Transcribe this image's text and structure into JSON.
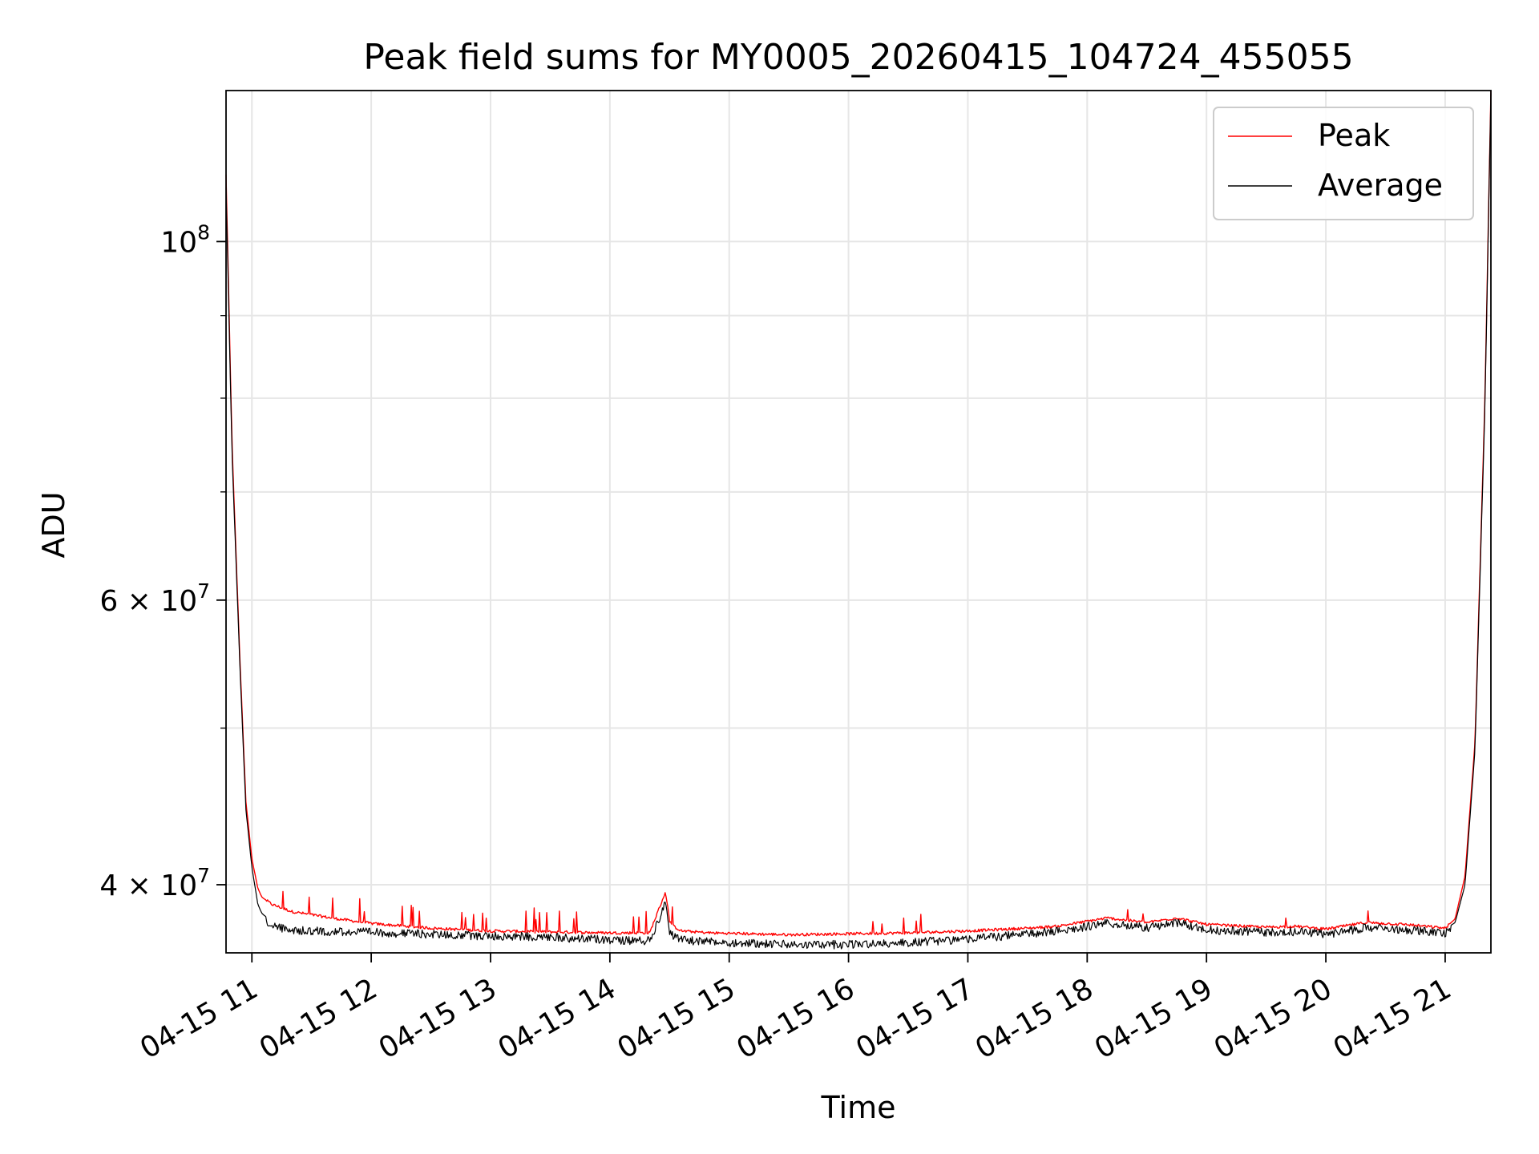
{
  "chart_data": {
    "type": "line",
    "title": "Peak field sums for MY0005_20260415_104724_455055",
    "xlabel": "Time",
    "ylabel": "ADU",
    "y_scale": "log",
    "xlim": [
      "04-15 10:47",
      "04-15 21:23"
    ],
    "ylim": [
      36300000,
      124000000
    ],
    "x_ticks": [
      "04-15 11",
      "04-15 12",
      "04-15 13",
      "04-15 14",
      "04-15 15",
      "04-15 16",
      "04-15 17",
      "04-15 18",
      "04-15 19",
      "04-15 20",
      "04-15 21"
    ],
    "y_major_ticks": [
      {
        "value": 100000000,
        "base": "10",
        "exp": "8"
      },
      {
        "value": 60000000,
        "base": "6 × 10",
        "exp": "7"
      },
      {
        "value": 40000000,
        "base": "4 × 10",
        "exp": "7"
      }
    ],
    "y_minor_ticks": [
      90000000,
      80000000,
      70000000,
      50000000
    ],
    "grid": true,
    "legend": "top-right",
    "series": [
      {
        "name": "Peak",
        "color": "#ff0000",
        "x": [
          "04-15 10:47",
          "04-15 10:50",
          "04-15 10:54",
          "04-15 10:57",
          "04-15 11:00",
          "04-15 11:03",
          "04-15 11:05",
          "04-15 11:10",
          "04-15 11:20",
          "04-15 11:40",
          "04-15 12:00",
          "04-15 12:30",
          "04-15 13:00",
          "04-15 13:30",
          "04-15 14:00",
          "04-15 14:20",
          "04-15 14:28",
          "04-15 14:30",
          "04-15 14:32",
          "04-15 14:36",
          "04-15 14:50",
          "04-15 15:30",
          "04-15 16:00",
          "04-15 16:30",
          "04-15 17:00",
          "04-15 17:30",
          "04-15 17:45",
          "04-15 18:10",
          "04-15 18:30",
          "04-15 18:45",
          "04-15 19:00",
          "04-15 19:30",
          "04-15 19:45",
          "04-15 20:00",
          "04-15 20:20",
          "04-15 20:40",
          "04-15 21:00",
          "04-15 21:05",
          "04-15 21:10",
          "04-15 21:15",
          "04-15 21:20",
          "04-15 21:23"
        ],
        "y": [
          110000000,
          75000000,
          55000000,
          45000000,
          41500000,
          39800000,
          39300000,
          38900000,
          38500000,
          38150000,
          37850000,
          37600000,
          37450000,
          37400000,
          37350000,
          37350000,
          39600000,
          38000000,
          37700000,
          37450000,
          37350000,
          37250000,
          37300000,
          37350000,
          37450000,
          37600000,
          37700000,
          38150000,
          37900000,
          38150000,
          37800000,
          37650000,
          37700000,
          37550000,
          37900000,
          37800000,
          37600000,
          38100000,
          40500000,
          49000000,
          80000000,
          124000000
        ]
      },
      {
        "name": "Average",
        "color": "#000000",
        "x": [
          "04-15 10:47",
          "04-15 10:50",
          "04-15 10:54",
          "04-15 10:57",
          "04-15 11:00",
          "04-15 11:03",
          "04-15 11:05",
          "04-15 11:10",
          "04-15 11:20",
          "04-15 11:40",
          "04-15 12:00",
          "04-15 12:30",
          "04-15 13:00",
          "04-15 13:30",
          "04-15 14:00",
          "04-15 14:20",
          "04-15 14:28",
          "04-15 14:30",
          "04-15 14:32",
          "04-15 14:36",
          "04-15 14:50",
          "04-15 15:30",
          "04-15 16:00",
          "04-15 16:30",
          "04-15 17:00",
          "04-15 17:30",
          "04-15 17:45",
          "04-15 18:10",
          "04-15 18:30",
          "04-15 18:45",
          "04-15 19:00",
          "04-15 19:30",
          "04-15 19:45",
          "04-15 20:00",
          "04-15 20:20",
          "04-15 20:40",
          "04-15 21:00",
          "04-15 21:05",
          "04-15 21:10",
          "04-15 21:15",
          "04-15 21:20",
          "04-15 21:23"
        ],
        "y": [
          108000000,
          74000000,
          54500000,
          44500000,
          41000000,
          38900000,
          38400000,
          37950000,
          37700000,
          37650000,
          37600000,
          37500000,
          37400000,
          37350000,
          37200000,
          37150000,
          39200000,
          37700000,
          37400000,
          37200000,
          37100000,
          36950000,
          36950000,
          37050000,
          37250000,
          37500000,
          37650000,
          38100000,
          37850000,
          38100000,
          37750000,
          37600000,
          37650000,
          37500000,
          37850000,
          37750000,
          37550000,
          37900000,
          40000000,
          48500000,
          79000000,
          123500000
        ]
      }
    ]
  }
}
